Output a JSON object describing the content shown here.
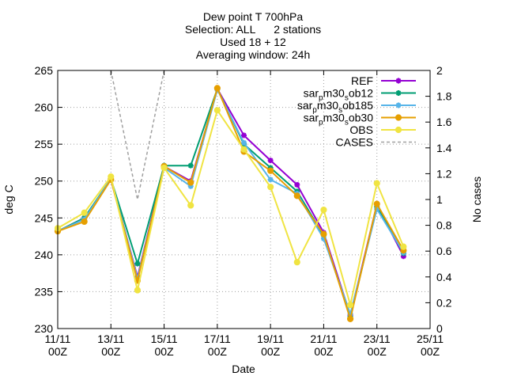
{
  "chart_data": {
    "type": "line",
    "title_lines": [
      "Dew point T 700hPa",
      "Selection: ALL      2 stations",
      "Used 18 + 12",
      "Averaging window: 24h"
    ],
    "xlabel": "Date",
    "ylabel": "deg C",
    "y2label": "No cases",
    "ylim": [
      230,
      265
    ],
    "y2lim": [
      0,
      2
    ],
    "yticks": [
      230,
      235,
      240,
      245,
      250,
      255,
      260,
      265
    ],
    "y2ticks": [
      0,
      0.2,
      0.4,
      0.6,
      0.8,
      1,
      1.2,
      1.4,
      1.6,
      1.8,
      2
    ],
    "xticks": [
      {
        "day": 11,
        "line1": "11/11",
        "line2": "00Z"
      },
      {
        "day": 13,
        "line1": "13/11",
        "line2": "00Z"
      },
      {
        "day": 15,
        "line1": "15/11",
        "line2": "00Z"
      },
      {
        "day": 17,
        "line1": "17/11",
        "line2": "00Z"
      },
      {
        "day": 19,
        "line1": "19/11",
        "line2": "00Z"
      },
      {
        "day": 21,
        "line1": "21/11",
        "line2": "00Z"
      },
      {
        "day": 23,
        "line1": "23/11",
        "line2": "00Z"
      },
      {
        "day": 25,
        "line1": "25/11",
        "line2": "00Z"
      }
    ],
    "xlim": [
      11,
      25
    ],
    "grid": true,
    "legend_position": "top-right",
    "x": [
      11,
      12,
      13,
      14,
      15,
      16,
      17,
      18,
      19,
      20,
      21,
      22,
      23,
      24
    ],
    "series": [
      {
        "name": "REF",
        "color": "#9400d3",
        "marker": "cross",
        "values": [
          243.2,
          245.0,
          250.2,
          237.0,
          252.0,
          250.0,
          262.5,
          256.2,
          252.8,
          249.5,
          243.0,
          231.8,
          246.8,
          239.8
        ]
      },
      {
        "name": "sar_pm30_sob12",
        "color": "#009e73",
        "marker": "cross",
        "values": [
          243.2,
          245.0,
          250.3,
          238.8,
          252.1,
          252.1,
          262.5,
          255.0,
          251.8,
          248.6,
          242.6,
          231.6,
          246.5,
          240.2
        ]
      },
      {
        "name": "sar_pm30_sob185",
        "color": "#56b4e9",
        "marker": "cross",
        "values": [
          243.2,
          244.8,
          250.3,
          236.8,
          251.8,
          249.3,
          262.4,
          255.2,
          250.2,
          248.3,
          242.2,
          232.0,
          246.2,
          240.3
        ]
      },
      {
        "name": "sar_pm30_sob30",
        "color": "#e69f00",
        "marker": "circle",
        "values": [
          243.2,
          244.5,
          250.2,
          236.5,
          252.0,
          249.8,
          262.6,
          254.0,
          251.4,
          248.0,
          242.8,
          231.3,
          246.9,
          240.6
        ]
      },
      {
        "name": "OBS",
        "color": "#f0e442",
        "marker": "circle",
        "values": [
          243.6,
          245.7,
          250.6,
          235.2,
          251.8,
          246.7,
          259.6,
          254.3,
          249.2,
          239.0,
          246.1,
          233.2,
          249.7,
          241.1
        ]
      },
      {
        "name": "CASES",
        "color": "#a0a0a0",
        "marker": "none",
        "dashed": true,
        "axis": "y2",
        "x": [
          13,
          14,
          15
        ],
        "values": [
          2,
          1,
          2
        ]
      }
    ]
  }
}
